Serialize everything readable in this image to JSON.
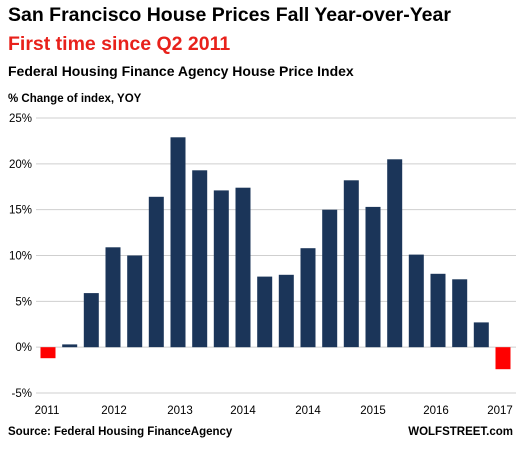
{
  "header": {
    "title": "San Francisco House Prices Fall Year-over-Year",
    "subtitle": "First time since Q2 2011",
    "subtitle_color": "#e8211b",
    "subtitle2": "Federal Housing Finance Agency House Price Index",
    "ylabel": "% Change of index, YOY"
  },
  "footer": {
    "source": "Source: Federal Housing FinanceAgency",
    "brand": "WOLFSTREET.com"
  },
  "chart_data": {
    "type": "bar",
    "title": "San Francisco House Prices Fall Year-over-Year",
    "subtitle": "First time since Q2 2011",
    "ylabel": "% Change of index, YOY",
    "xlabel": "",
    "ylim": [
      -5,
      25
    ],
    "yticks": [
      25,
      20,
      15,
      10,
      5,
      0,
      -5
    ],
    "ytick_labels": [
      "25%",
      "20%",
      "15%",
      "10%",
      "5%",
      "0%",
      "-5%"
    ],
    "x_tick_labels": [
      "2011",
      "2012",
      "2013",
      "2014",
      "2014",
      "2015",
      "2016",
      "2017"
    ],
    "values": [
      -1.2,
      0.3,
      5.9,
      10.9,
      10.0,
      16.4,
      22.9,
      19.3,
      17.1,
      17.4,
      7.7,
      7.9,
      10.8,
      15.0,
      18.2,
      15.3,
      20.5,
      10.1,
      8.0,
      7.4,
      2.7,
      -2.4
    ],
    "positive_color": "#1b3559",
    "negative_color": "#ff0000",
    "grid": true,
    "legend": "none"
  }
}
